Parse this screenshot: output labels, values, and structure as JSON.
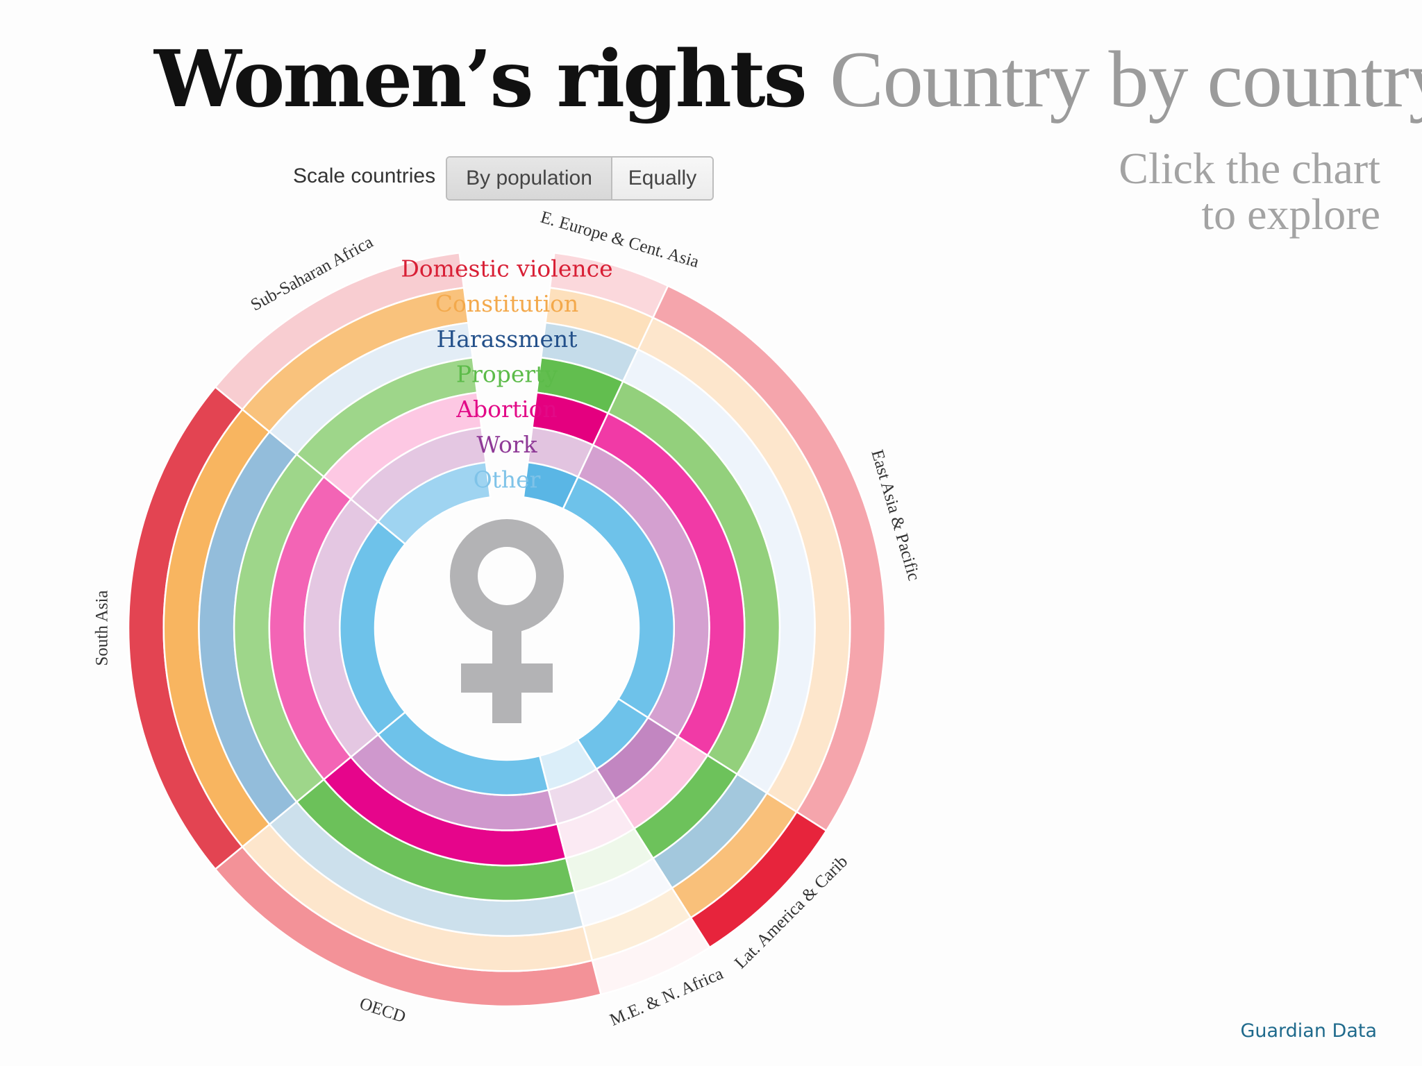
{
  "header": {
    "title_main": "Women’s rights",
    "title_sub": "Country by country",
    "hint_line1": "Click the chart",
    "hint_line2": "to explore"
  },
  "controls": {
    "scale_label": "Scale countries",
    "options": [
      "By population",
      "Equally"
    ],
    "selected": "By population"
  },
  "chart_data": {
    "type": "radial-segmented-rings",
    "title": "Women’s rights Country by country",
    "categories": [
      "Domestic violence",
      "Constitution",
      "Harassment",
      "Property",
      "Abortion",
      "Work",
      "Other"
    ],
    "legend_colors": [
      "#d81f35",
      "#f3a94c",
      "#23508a",
      "#5cbb49",
      "#e20a87",
      "#8f3a97",
      "#7fc3e8"
    ],
    "regions": [
      {
        "name": "E. Europe & Cent. Asia",
        "share": 0.05
      },
      {
        "name": "East Asia & Pacific",
        "share": 0.27
      },
      {
        "name": "Lat. America & Carib",
        "share": 0.07
      },
      {
        "name": "M.E. & N. Africa",
        "share": 0.05
      },
      {
        "name": "OECD",
        "share": 0.18
      },
      {
        "name": "South Asia",
        "share": 0.22
      },
      {
        "name": "Sub-Saharan Africa",
        "share": 0.12
      }
    ],
    "gap_share": 0.04,
    "rings": [
      {
        "category": "Domestic violence",
        "colors": [
          "#fbd8dc",
          "#f5a5ac",
          "#e7243c",
          "#fef5f6",
          "#f39298",
          "#e34452",
          "#f8cdd1"
        ]
      },
      {
        "category": "Constitution",
        "colors": [
          "#fde0bc",
          "#fde6cc",
          "#f9c07a",
          "#fdeed9",
          "#fde6cc",
          "#f8b560",
          "#f9c27c"
        ]
      },
      {
        "category": "Harassment",
        "colors": [
          "#c5dcea",
          "#eef4fb",
          "#a3c8dd",
          "#f6f8fc",
          "#cce0ec",
          "#93bddb",
          "#e3edf6"
        ]
      },
      {
        "category": "Property",
        "colors": [
          "#62be4f",
          "#93d07c",
          "#6dc25b",
          "#eef8ea",
          "#6cc15a",
          "#9ed68a",
          "#9ed68a"
        ]
      },
      {
        "category": "Abortion",
        "colors": [
          "#e4007f",
          "#f13aa6",
          "#fcc6df",
          "#fbeaf3",
          "#e6058b",
          "#f364b5",
          "#fdc8e3"
        ]
      },
      {
        "category": "Work",
        "colors": [
          "#e2c4e0",
          "#d4a0d0",
          "#c286c1",
          "#eedbec",
          "#cf98cd",
          "#e4c7e2",
          "#e4c7e2"
        ]
      },
      {
        "category": "Other",
        "colors": [
          "#5ab6e5",
          "#6ec2ea",
          "#6ec2ea",
          "#dbeef9",
          "#6ec2ea",
          "#6ec2ea",
          "#9fd4f1"
        ]
      }
    ]
  },
  "footer": {
    "credit": "Guardian Data"
  }
}
